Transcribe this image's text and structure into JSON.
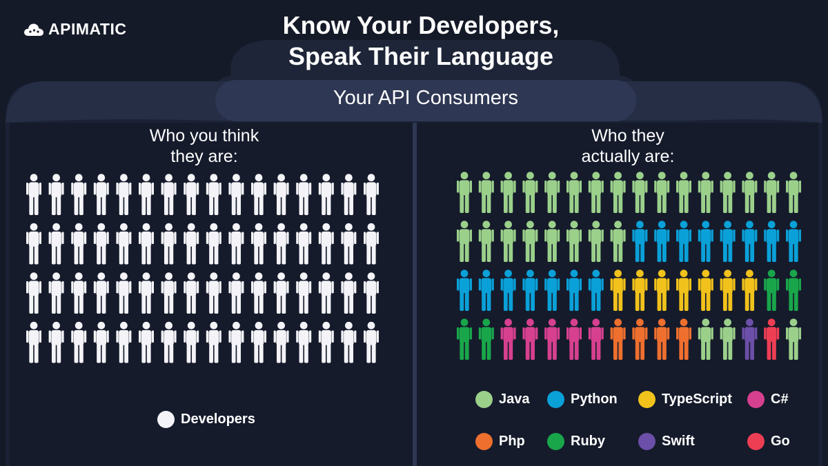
{
  "brand": {
    "name": "APIMATIC",
    "logo_icon": "cloud-icon"
  },
  "heading": {
    "line1": "Know Your Developers,",
    "line2": "Speak Their Language"
  },
  "panel_title": "Your API Consumers",
  "left": {
    "heading_line1": "Who you think",
    "heading_line2": "they are:",
    "people_count": 64,
    "legend": {
      "label": "Developers",
      "color": "#f4f4f8"
    }
  },
  "right": {
    "heading_line1": "Who they",
    "heading_line2": "actually are:",
    "people_sequence": [
      "Java",
      "Java",
      "Java",
      "Java",
      "Java",
      "Java",
      "Java",
      "Java",
      "Java",
      "Java",
      "Java",
      "Java",
      "Java",
      "Java",
      "Java",
      "Java",
      "Java",
      "Java",
      "Java",
      "Java",
      "Java",
      "Java",
      "Java",
      "Java",
      "Python",
      "Python",
      "Python",
      "Python",
      "Python",
      "Python",
      "Python",
      "Python",
      "Python",
      "Python",
      "Python",
      "Python",
      "Python",
      "Python",
      "Python",
      "TypeScript",
      "TypeScript",
      "TypeScript",
      "TypeScript",
      "TypeScript",
      "TypeScript",
      "TypeScript",
      "Ruby",
      "Ruby",
      "Ruby",
      "Ruby",
      "C#",
      "C#",
      "C#",
      "C#",
      "C#",
      "Php",
      "Php",
      "Php",
      "Php",
      "Java",
      "Java",
      "Swift",
      "Go",
      "Java"
    ],
    "legend": [
      {
        "label": "Java",
        "color": "#9bd08b"
      },
      {
        "label": "Python",
        "color": "#0aa0d8"
      },
      {
        "label": "TypeScript",
        "color": "#f1c21b"
      },
      {
        "label": "C#",
        "color": "#d7408f"
      },
      {
        "label": "Php",
        "color": "#ee6f2e"
      },
      {
        "label": "Ruby",
        "color": "#19a64b"
      },
      {
        "label": "Swift",
        "color": "#6c4fa8"
      },
      {
        "label": "Go",
        "color": "#ee3e54"
      }
    ]
  },
  "colors": {
    "background": "#151a28",
    "panel": "#1b2235",
    "panel_header": "#2c3550",
    "divider": "#2e3852",
    "developer_figure": "#f4f4f8"
  }
}
